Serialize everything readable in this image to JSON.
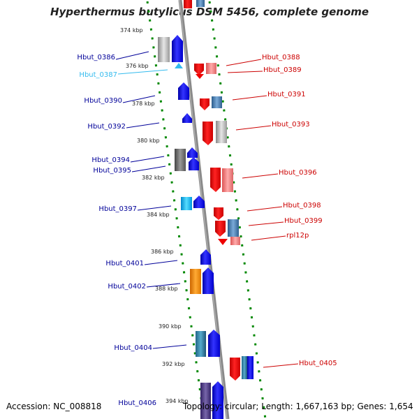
{
  "title": "Hyperthermus butylicus DSM 5456, complete genome",
  "footer": {
    "accession": "Accession: NC_008818",
    "summary": "Topology: circular; Length: 1,667,163 bp; Genes: 1,654"
  },
  "colors": {
    "forward_strand": "#0000ee",
    "reverse_strand": "#ee0000",
    "tick_marks": "#008800",
    "backbone": "#888888"
  },
  "ticks": [
    "374 kbp",
    "376 kbp",
    "378 kbp",
    "380 kbp",
    "382 kbp",
    "384 kbp",
    "386 kbp",
    "388 kbp",
    "390 kbp",
    "392 kbp",
    "394 kbp"
  ],
  "genes_left": [
    {
      "name": "Hbut_0386",
      "color": "#000099"
    },
    {
      "name": "Hbut_0387",
      "color": "#33bbee"
    },
    {
      "name": "Hbut_0390",
      "color": "#000099"
    },
    {
      "name": "Hbut_0392",
      "color": "#000099"
    },
    {
      "name": "Hbut_0394",
      "color": "#000099"
    },
    {
      "name": "Hbut_0395",
      "color": "#000099"
    },
    {
      "name": "Hbut_0397",
      "color": "#000099"
    },
    {
      "name": "Hbut_0401",
      "color": "#000099"
    },
    {
      "name": "Hbut_0402",
      "color": "#000099"
    },
    {
      "name": "Hbut_0404",
      "color": "#000099"
    },
    {
      "name": "Hbut_0406",
      "color": "#000099"
    }
  ],
  "genes_right": [
    {
      "name": "Hbut_0388",
      "color": "#cc0000"
    },
    {
      "name": "Hbut_0389",
      "color": "#cc0000"
    },
    {
      "name": "Hbut_0391",
      "color": "#cc0000"
    },
    {
      "name": "Hbut_0393",
      "color": "#cc0000"
    },
    {
      "name": "Hbut_0396",
      "color": "#cc0000"
    },
    {
      "name": "Hbut_0398",
      "color": "#cc0000"
    },
    {
      "name": "Hbut_0399",
      "color": "#cc0000"
    },
    {
      "name": "rpl12p",
      "color": "#cc0000"
    },
    {
      "name": "Hbut_0405",
      "color": "#cc0000"
    }
  ]
}
